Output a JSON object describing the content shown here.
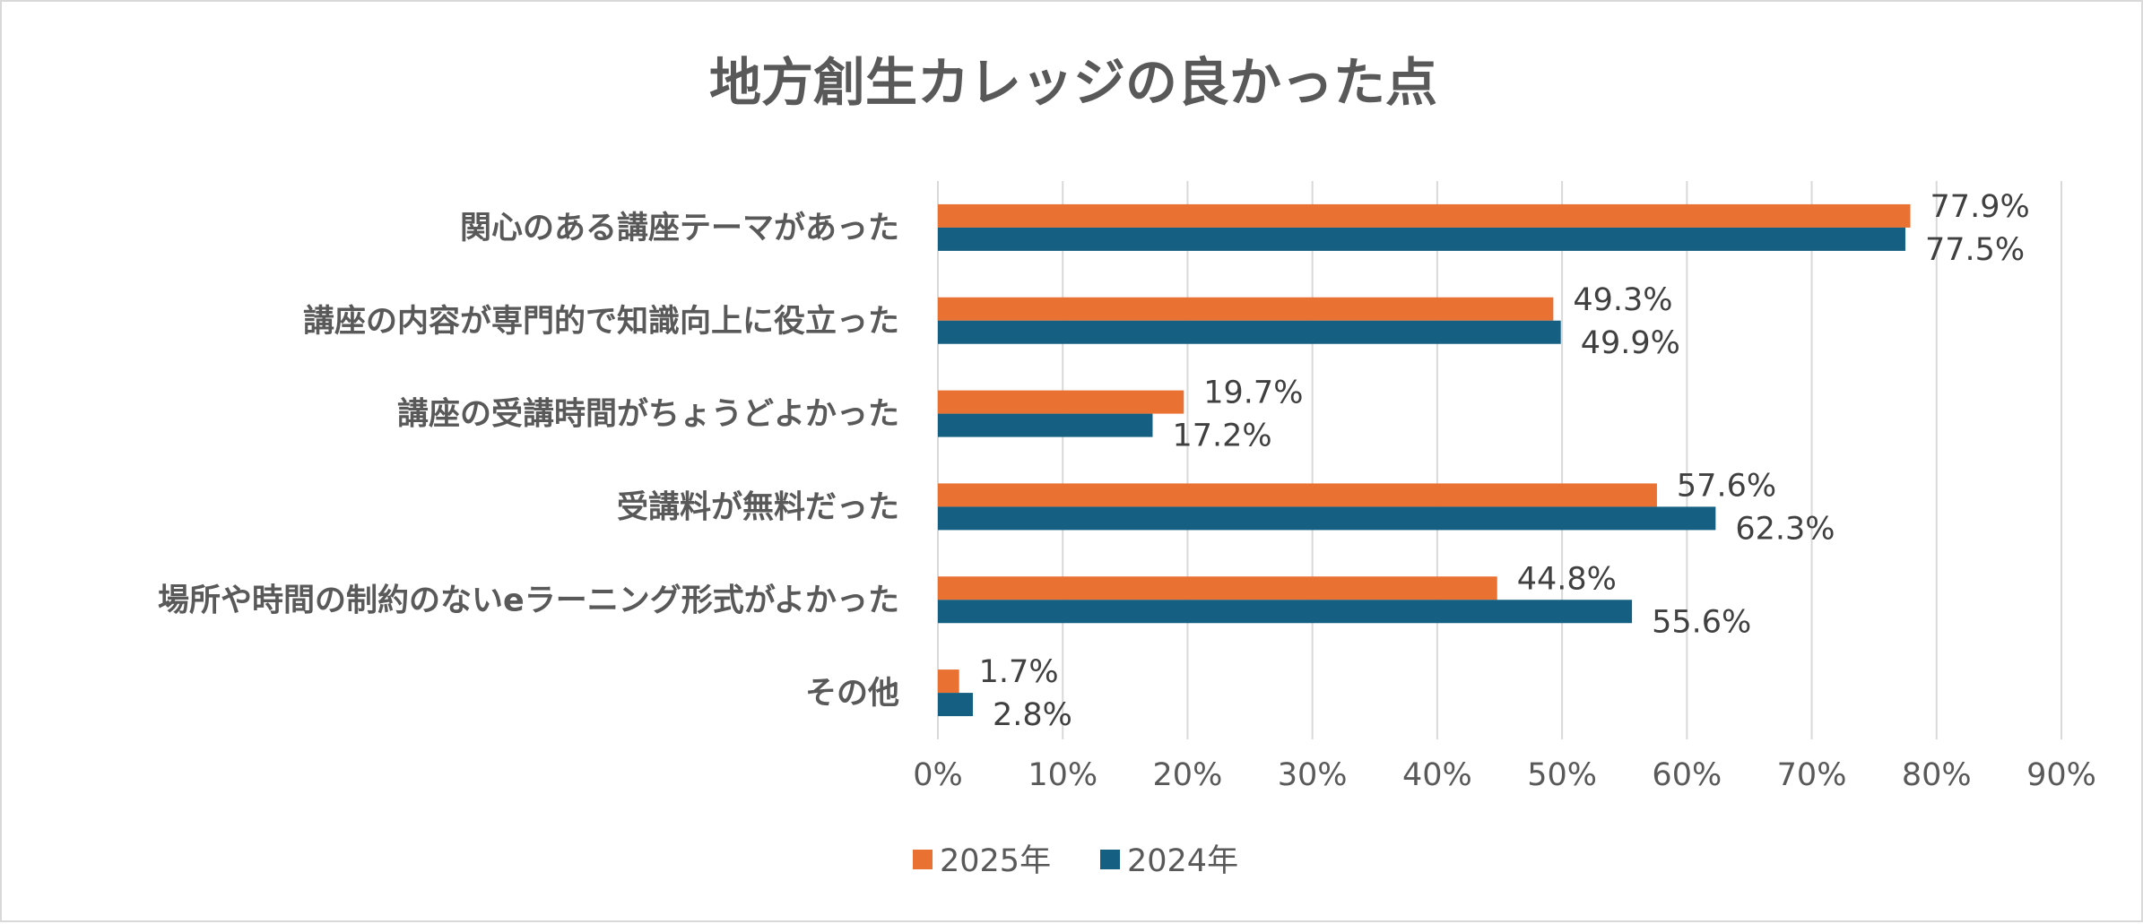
{
  "chart_data": {
    "type": "bar",
    "orientation": "horizontal",
    "title": "地方創生カレッジの良かった点",
    "categories": [
      "関心のある講座テーマがあった",
      "講座の内容が専門的で知識向上に役立った",
      "講座の受講時間がちょうどよかった",
      "受講料が無料だった",
      "場所や時間の制約のないeラーニング形式がよかった",
      "その他"
    ],
    "series": [
      {
        "name": "2025年",
        "color": "#E97132",
        "values": [
          77.9,
          49.3,
          19.7,
          57.6,
          44.8,
          1.7
        ],
        "labels": [
          "77.9%",
          "49.3%",
          "19.7%",
          "57.6%",
          "44.8%",
          "1.7%"
        ]
      },
      {
        "name": "2024年",
        "color": "#156082",
        "values": [
          77.5,
          49.9,
          17.2,
          62.3,
          55.6,
          2.8
        ],
        "labels": [
          "77.5%",
          "49.9%",
          "17.2%",
          "62.3%",
          "55.6%",
          "2.8%"
        ]
      }
    ],
    "xlim": [
      0,
      90
    ],
    "xticks": [
      "0%",
      "10%",
      "20%",
      "30%",
      "40%",
      "50%",
      "60%",
      "70%",
      "80%",
      "90%"
    ],
    "grid": true,
    "legend_position": "bottom"
  }
}
